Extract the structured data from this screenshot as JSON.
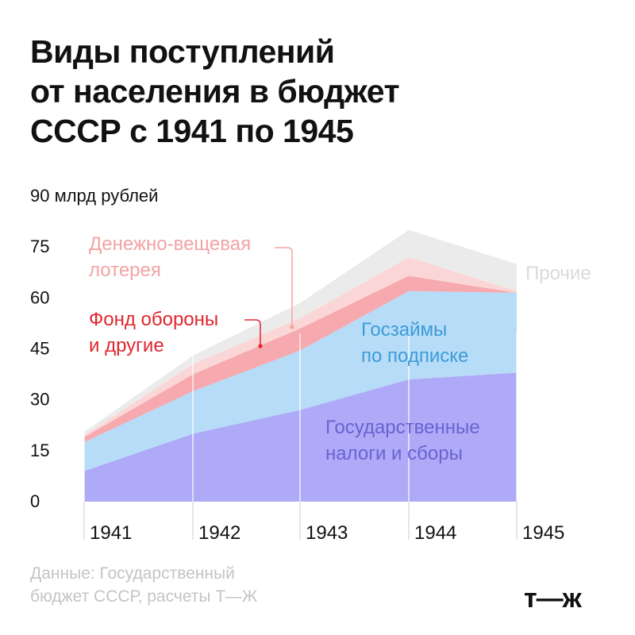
{
  "title_lines": [
    "Виды поступлений",
    "от населения в бюджет",
    "СССР с 1941 по 1945"
  ],
  "source_lines": [
    "Данные: Государственный",
    "бюджет СССР, расчеты Т—Ж"
  ],
  "logo": "т—ж",
  "chart_data": {
    "type": "area",
    "stacked": true,
    "x": [
      "1941",
      "1942",
      "1943",
      "1944",
      "1945"
    ],
    "yticks": [
      "90 млрд рублей",
      "75",
      "60",
      "45",
      "30",
      "15",
      "0"
    ],
    "ylim": [
      0,
      90
    ],
    "series": [
      {
        "label_lines": [
          "Государственные",
          "налоги и сборы"
        ],
        "values": [
          9,
          20,
          27,
          36,
          38
        ],
        "color": "#aeaaf7",
        "label_color": "#6a62d2"
      },
      {
        "label_lines": [
          "Госзаймы",
          "по подписке"
        ],
        "values": [
          8.5,
          12.5,
          17.5,
          26,
          23.5
        ],
        "color": "#b6dcf7",
        "label_color": "#3d9bd8"
      },
      {
        "label_lines": [
          "Фонд обороны",
          "и другие"
        ],
        "values": [
          1.5,
          5,
          6.5,
          4.5,
          0
        ],
        "color": "#f6a9ae",
        "label_color": "#e0262f"
      },
      {
        "label_lines": [
          "Денежно-вещевая",
          "лотерея"
        ],
        "values": [
          0.5,
          3,
          3,
          5.5,
          0.5
        ],
        "color": "#fbd6d6",
        "label_color": "#f2a3a3"
      },
      {
        "label_lines": [
          "Прочие"
        ],
        "values": [
          1,
          2.5,
          4.5,
          8,
          8
        ],
        "color": "#ebebeb",
        "label_color": "#dadada"
      }
    ]
  }
}
